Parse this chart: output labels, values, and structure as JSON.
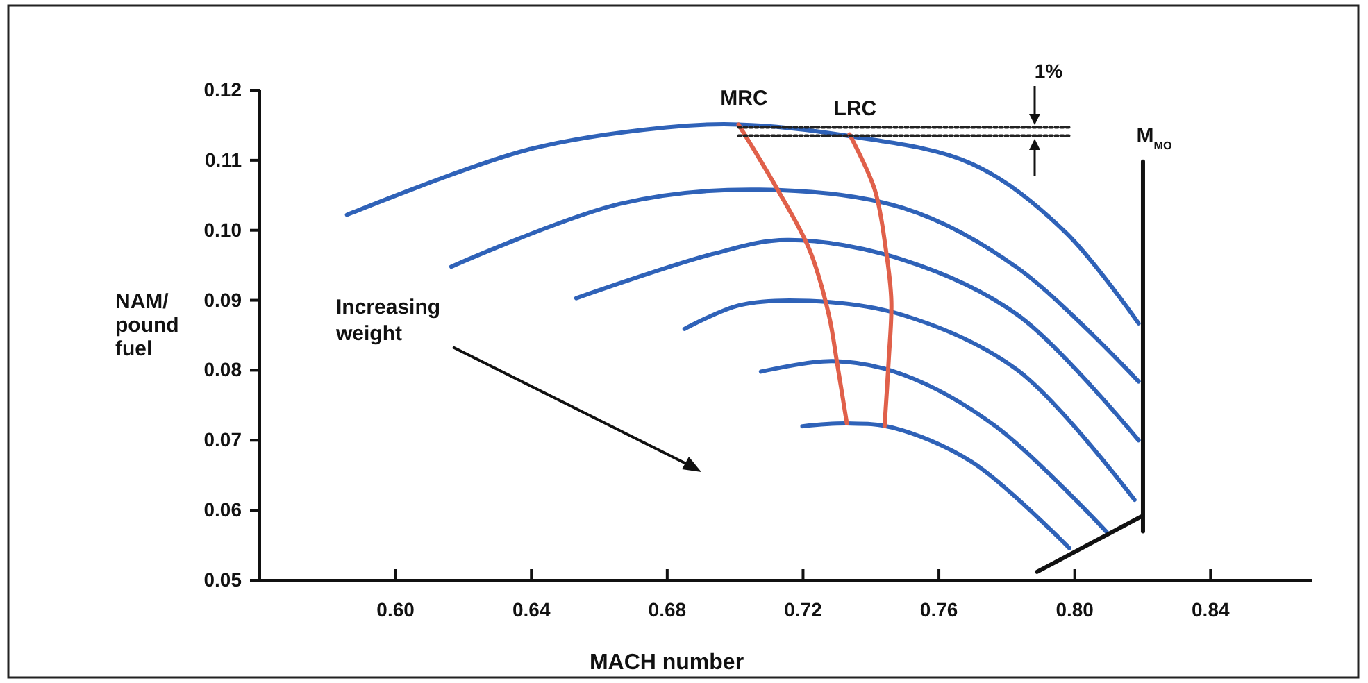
{
  "chart_data": {
    "type": "line",
    "xlabel": "MACH number",
    "ylabel": "NAM/\npound\nfuel",
    "xlim": [
      0.56,
      0.87
    ],
    "ylim": [
      0.05,
      0.12
    ],
    "xticks": [
      {
        "value": 0.6,
        "label": "0.60"
      },
      {
        "value": 0.64,
        "label": "0.64"
      },
      {
        "value": 0.68,
        "label": "0.68"
      },
      {
        "value": 0.72,
        "label": "0.72"
      },
      {
        "value": 0.76,
        "label": "0.76"
      },
      {
        "value": 0.8,
        "label": "0.80"
      },
      {
        "value": 0.84,
        "label": "0.84"
      }
    ],
    "yticks": [
      {
        "value": 0.05,
        "label": "0.05"
      },
      {
        "value": 0.06,
        "label": "0.06"
      },
      {
        "value": 0.07,
        "label": "0.07"
      },
      {
        "value": 0.08,
        "label": "0.08"
      },
      {
        "value": 0.09,
        "label": "0.09"
      },
      {
        "value": 0.1,
        "label": "0.10"
      },
      {
        "value": 0.11,
        "label": "0.11"
      },
      {
        "value": 0.12,
        "label": "0.12"
      }
    ],
    "grid": false,
    "marker": "none",
    "line_style": "solid",
    "annotations": [
      "Increasing weight",
      "1%"
    ],
    "series": [
      {
        "color": "#2f62b8",
        "x": [
          0.5857,
          0.6389,
          0.6798,
          0.701,
          0.7329,
          0.7697,
          0.7971,
          0.8188
        ],
        "values": [
          0.1022,
          0.1115,
          0.1147,
          0.1151,
          0.1135,
          0.1095,
          0.0998,
          0.0867
        ]
      },
      {
        "color": "#2f62b8",
        "x": [
          0.6164,
          0.6663,
          0.7072,
          0.7493,
          0.7832,
          0.8188
        ],
        "values": [
          0.0948,
          0.1038,
          0.1058,
          0.1032,
          0.0946,
          0.0784
        ]
      },
      {
        "color": "#2f62b8",
        "x": [
          0.6532,
          0.6933,
          0.7153,
          0.7493,
          0.7832,
          0.8188
        ],
        "values": [
          0.0903,
          0.0966,
          0.0986,
          0.0958,
          0.0879,
          0.07
        ]
      },
      {
        "color": "#2f62b8",
        "x": [
          0.6851,
          0.7014,
          0.7219,
          0.7493,
          0.7832,
          0.8176
        ],
        "values": [
          0.0859,
          0.0893,
          0.0899,
          0.0879,
          0.08,
          0.0615
        ]
      },
      {
        "color": "#2f62b8",
        "x": [
          0.7076,
          0.7288,
          0.7493,
          0.7767,
          0.8094
        ],
        "values": [
          0.0798,
          0.0813,
          0.0794,
          0.072,
          0.0569
        ]
      },
      {
        "color": "#2f62b8",
        "x": [
          0.7198,
          0.7329,
          0.7464,
          0.7697,
          0.7984
        ],
        "values": [
          0.072,
          0.0724,
          0.0718,
          0.0669,
          0.0546
        ]
      },
      {
        "name": "MRC",
        "color": "#e0604a",
        "x": [
          0.701,
          0.7125,
          0.7219,
          0.7276,
          0.7301,
          0.7329
        ],
        "values": [
          0.1151,
          0.1058,
          0.0972,
          0.0879,
          0.0808,
          0.0724
        ]
      },
      {
        "name": "LRC",
        "color": "#e0604a",
        "x": [
          0.7337,
          0.7411,
          0.7444,
          0.746,
          0.7452,
          0.744
        ],
        "values": [
          0.1137,
          0.1058,
          0.0972,
          0.0899,
          0.0813,
          0.072
        ]
      },
      {
        "name": "M$_{MO}$",
        "color": "#111111",
        "x": [
          0.8201,
          0.8201
        ],
        "values": [
          0.1098,
          0.057
        ]
      },
      {
        "color": "#111111",
        "x": [
          0.7889,
          0.8196
        ],
        "values": [
          0.0512,
          0.0591
        ]
      },
      {
        "color": "#222222",
        "line_style": "dotted",
        "x": [
          0.701,
          0.7984
        ],
        "values": [
          0.1147,
          0.1147
        ]
      },
      {
        "color": "#222222",
        "line_style": "dotted",
        "x": [
          0.701,
          0.7984
        ],
        "values": [
          0.1135,
          0.1135
        ]
      }
    ]
  }
}
